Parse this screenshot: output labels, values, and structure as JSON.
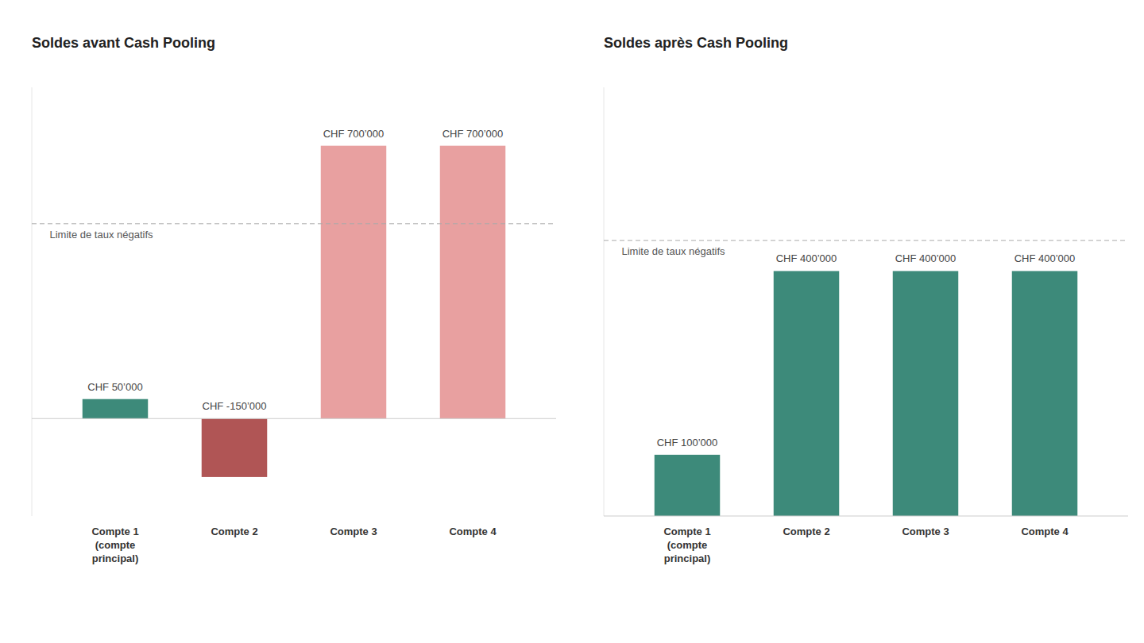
{
  "chart_data": [
    {
      "type": "bar",
      "title": "Soldes avant Cash Pooling",
      "categories": [
        "Compte 1\n(compte\nprincipal)",
        "Compte 2",
        "Compte 3",
        "Compte 4"
      ],
      "values": [
        50000,
        -150000,
        700000,
        700000
      ],
      "value_labels": [
        "CHF 50’000",
        "CHF -150’000",
        "CHF 700’000",
        "CHF 700’000"
      ],
      "colors": [
        "#3d8a7a",
        "#b05555",
        "#e8a0a0",
        "#e8a0a0"
      ],
      "reference_lines": [
        {
          "value": 500000,
          "label": "Limite de taux négatifs"
        }
      ],
      "ylim": [
        -250000,
        850000
      ],
      "data_labels": true,
      "tick_labels": "x",
      "grid": false
    },
    {
      "type": "bar",
      "title": "Soldes après Cash Pooling",
      "categories": [
        "Compte 1\n(compte\nprincipal)",
        "Compte 2",
        "Compte 3",
        "Compte 4"
      ],
      "values": [
        100000,
        400000,
        400000,
        400000
      ],
      "value_labels": [
        "CHF 100’000",
        "CHF 400’000",
        "CHF 400’000",
        "CHF 400’000"
      ],
      "colors": [
        "#3d8a7a",
        "#3d8a7a",
        "#3d8a7a",
        "#3d8a7a"
      ],
      "reference_lines": [
        {
          "value": 450000,
          "label": "Limite de taux négatifs"
        }
      ],
      "ylim": [
        0,
        700000
      ],
      "data_labels": true,
      "tick_labels": "x",
      "grid": false
    }
  ]
}
